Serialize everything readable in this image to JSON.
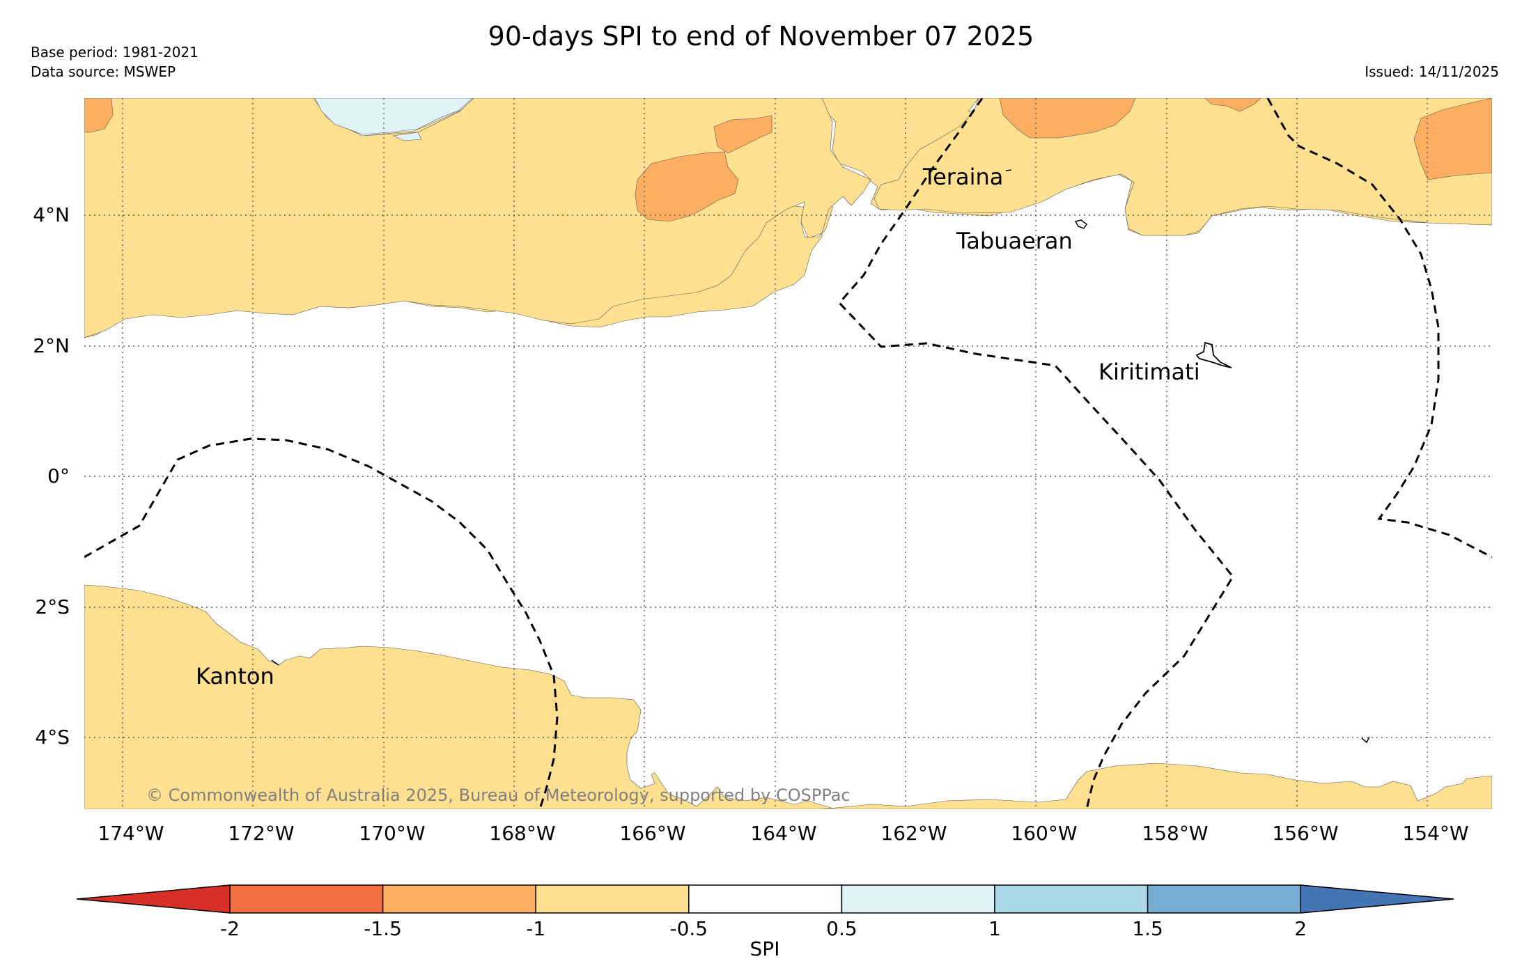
{
  "header": {
    "title": "90-days SPI to end of November 07 2025",
    "base_period": "Base period: 1981-2021",
    "data_source": "Data source: MSWEP",
    "issued": "Issued: 14/11/2025"
  },
  "map": {
    "lat_labels": [
      "4°N",
      "2°N",
      "0°",
      "2°S",
      "4°S"
    ],
    "lon_labels": [
      "174°W",
      "172°W",
      "170°W",
      "168°W",
      "166°W",
      "164°W",
      "162°W",
      "160°W",
      "158°W",
      "156°W",
      "154°W"
    ],
    "places": {
      "teraina": "Teraina",
      "tabuaeran": "Tabuaeran",
      "kiritimati": "Kiritimati",
      "kanton": "Kanton"
    },
    "copyright": "© Commonwealth of Australia 2025, Bureau of Meteorology, supported by COSPPac"
  },
  "colorbar": {
    "label": "SPI",
    "ticks": [
      "-2",
      "-1.5",
      "-1",
      "-0.5",
      "0.5",
      "1",
      "1.5",
      "2"
    ],
    "colors": {
      "lt_-2": "#d73027",
      "-2_-1.5": "#f46d43",
      "-1.5_-1": "#fdae61",
      "-1_-0.5": "#fee090",
      "-0.5_0.5": "#ffffff",
      "0.5_1": "#e0f3f8",
      "1_1.5": "#abd9e9",
      "1.5_2": "#74add1",
      "gt_2": "#4575b4"
    }
  }
}
